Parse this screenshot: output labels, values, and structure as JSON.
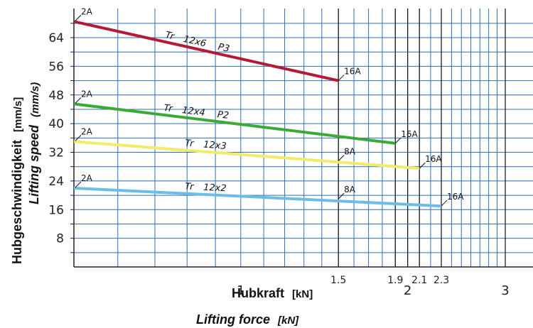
{
  "chart_data": {
    "type": "line",
    "x_axis": {
      "title": "Hubkraft",
      "title_unit": "[kN]",
      "title_en": "Lifting force",
      "title_en_unit": "[kN]",
      "scale": "log",
      "range": [
        0.5,
        3.0
      ],
      "major_ticks": [
        "1",
        "2",
        "3"
      ],
      "minor_ticks": [
        "1.5",
        "1.9",
        "2.1",
        "2.3"
      ]
    },
    "y_axis": {
      "title": "Hubgeschwindigkeit",
      "title_unit": "[mm/s]",
      "title_en": "Lifting speed",
      "title_en_unit": "(mm/s)",
      "range": [
        0,
        70
      ],
      "ticks": [
        "8",
        "16",
        "24",
        "32",
        "40",
        "48",
        "56",
        "64"
      ]
    },
    "grid": true,
    "series": [
      {
        "name": "Tr 12x6 P3",
        "name_parts": [
          "Tr",
          "12x6",
          "P3"
        ],
        "color": "#b31b34",
        "points": [
          {
            "x": 0.5,
            "y": 68.5
          },
          {
            "x": 1.5,
            "y": 52
          }
        ],
        "start_label": "2A",
        "end_label": "16A"
      },
      {
        "name": "Tr 12x4 P2",
        "name_parts": [
          "Tr",
          "12x4",
          "P2"
        ],
        "color": "#3aaa35",
        "points": [
          {
            "x": 0.5,
            "y": 45.5
          },
          {
            "x": 1.9,
            "y": 34.5
          }
        ],
        "start_label": "2A",
        "end_label": "16A"
      },
      {
        "name": "Tr 12x3",
        "name_parts": [
          "Tr",
          "12x3"
        ],
        "color": "#f0ec6a",
        "points": [
          {
            "x": 0.5,
            "y": 35
          },
          {
            "x": 2.1,
            "y": 27.5
          }
        ],
        "start_label": "2A",
        "mid_label": "8A",
        "mid_x": 1.5,
        "mid_y": 29.6,
        "end_label": "16A"
      },
      {
        "name": "Tr 12x2",
        "name_parts": [
          "Tr",
          "12x2"
        ],
        "color": "#6bbde8",
        "points": [
          {
            "x": 0.5,
            "y": 22
          },
          {
            "x": 2.3,
            "y": 17
          }
        ],
        "start_label": "2A",
        "mid_label": "8A",
        "mid_x": 1.5,
        "mid_y": 19,
        "end_label": "16A"
      }
    ],
    "colors": {
      "grid": "#2f6db5",
      "axis": "#222222",
      "vline": "#111111"
    }
  }
}
